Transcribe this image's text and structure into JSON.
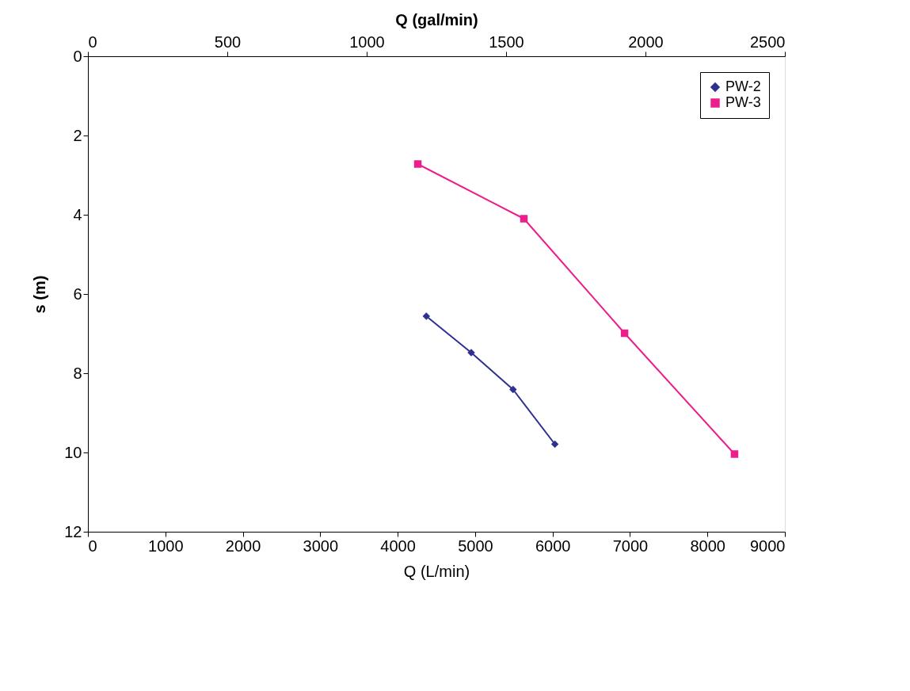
{
  "chart_data": {
    "type": "line",
    "xlabel": "Q (L/min)",
    "ylabel": "s (m)",
    "x2label": "Q (gal/min)",
    "xlim": [
      0,
      9000
    ],
    "xticks": [
      0,
      1000,
      2000,
      3000,
      4000,
      5000,
      6000,
      7000,
      8000,
      9000
    ],
    "x2lim": [
      0,
      2500
    ],
    "x2ticks": [
      0,
      500,
      1000,
      1500,
      2000,
      2500
    ],
    "ylim": [
      12,
      0
    ],
    "yticks": [
      0,
      2,
      4,
      6,
      8,
      10,
      12
    ],
    "grid": false,
    "legend": "top right",
    "line_style": "solid",
    "series": [
      {
        "name": "PW-2",
        "color": "#2e3192",
        "marker": "diamond",
        "x": [
          4370,
          4950,
          5490,
          6030
        ],
        "values": [
          6.56,
          7.48,
          8.41,
          9.79
        ]
      },
      {
        "name": "PW-3",
        "color": "#ec1e8c",
        "marker": "square",
        "x": [
          4260,
          5630,
          6930,
          8350
        ],
        "values": [
          2.72,
          4.1,
          6.99,
          10.04
        ]
      }
    ]
  }
}
